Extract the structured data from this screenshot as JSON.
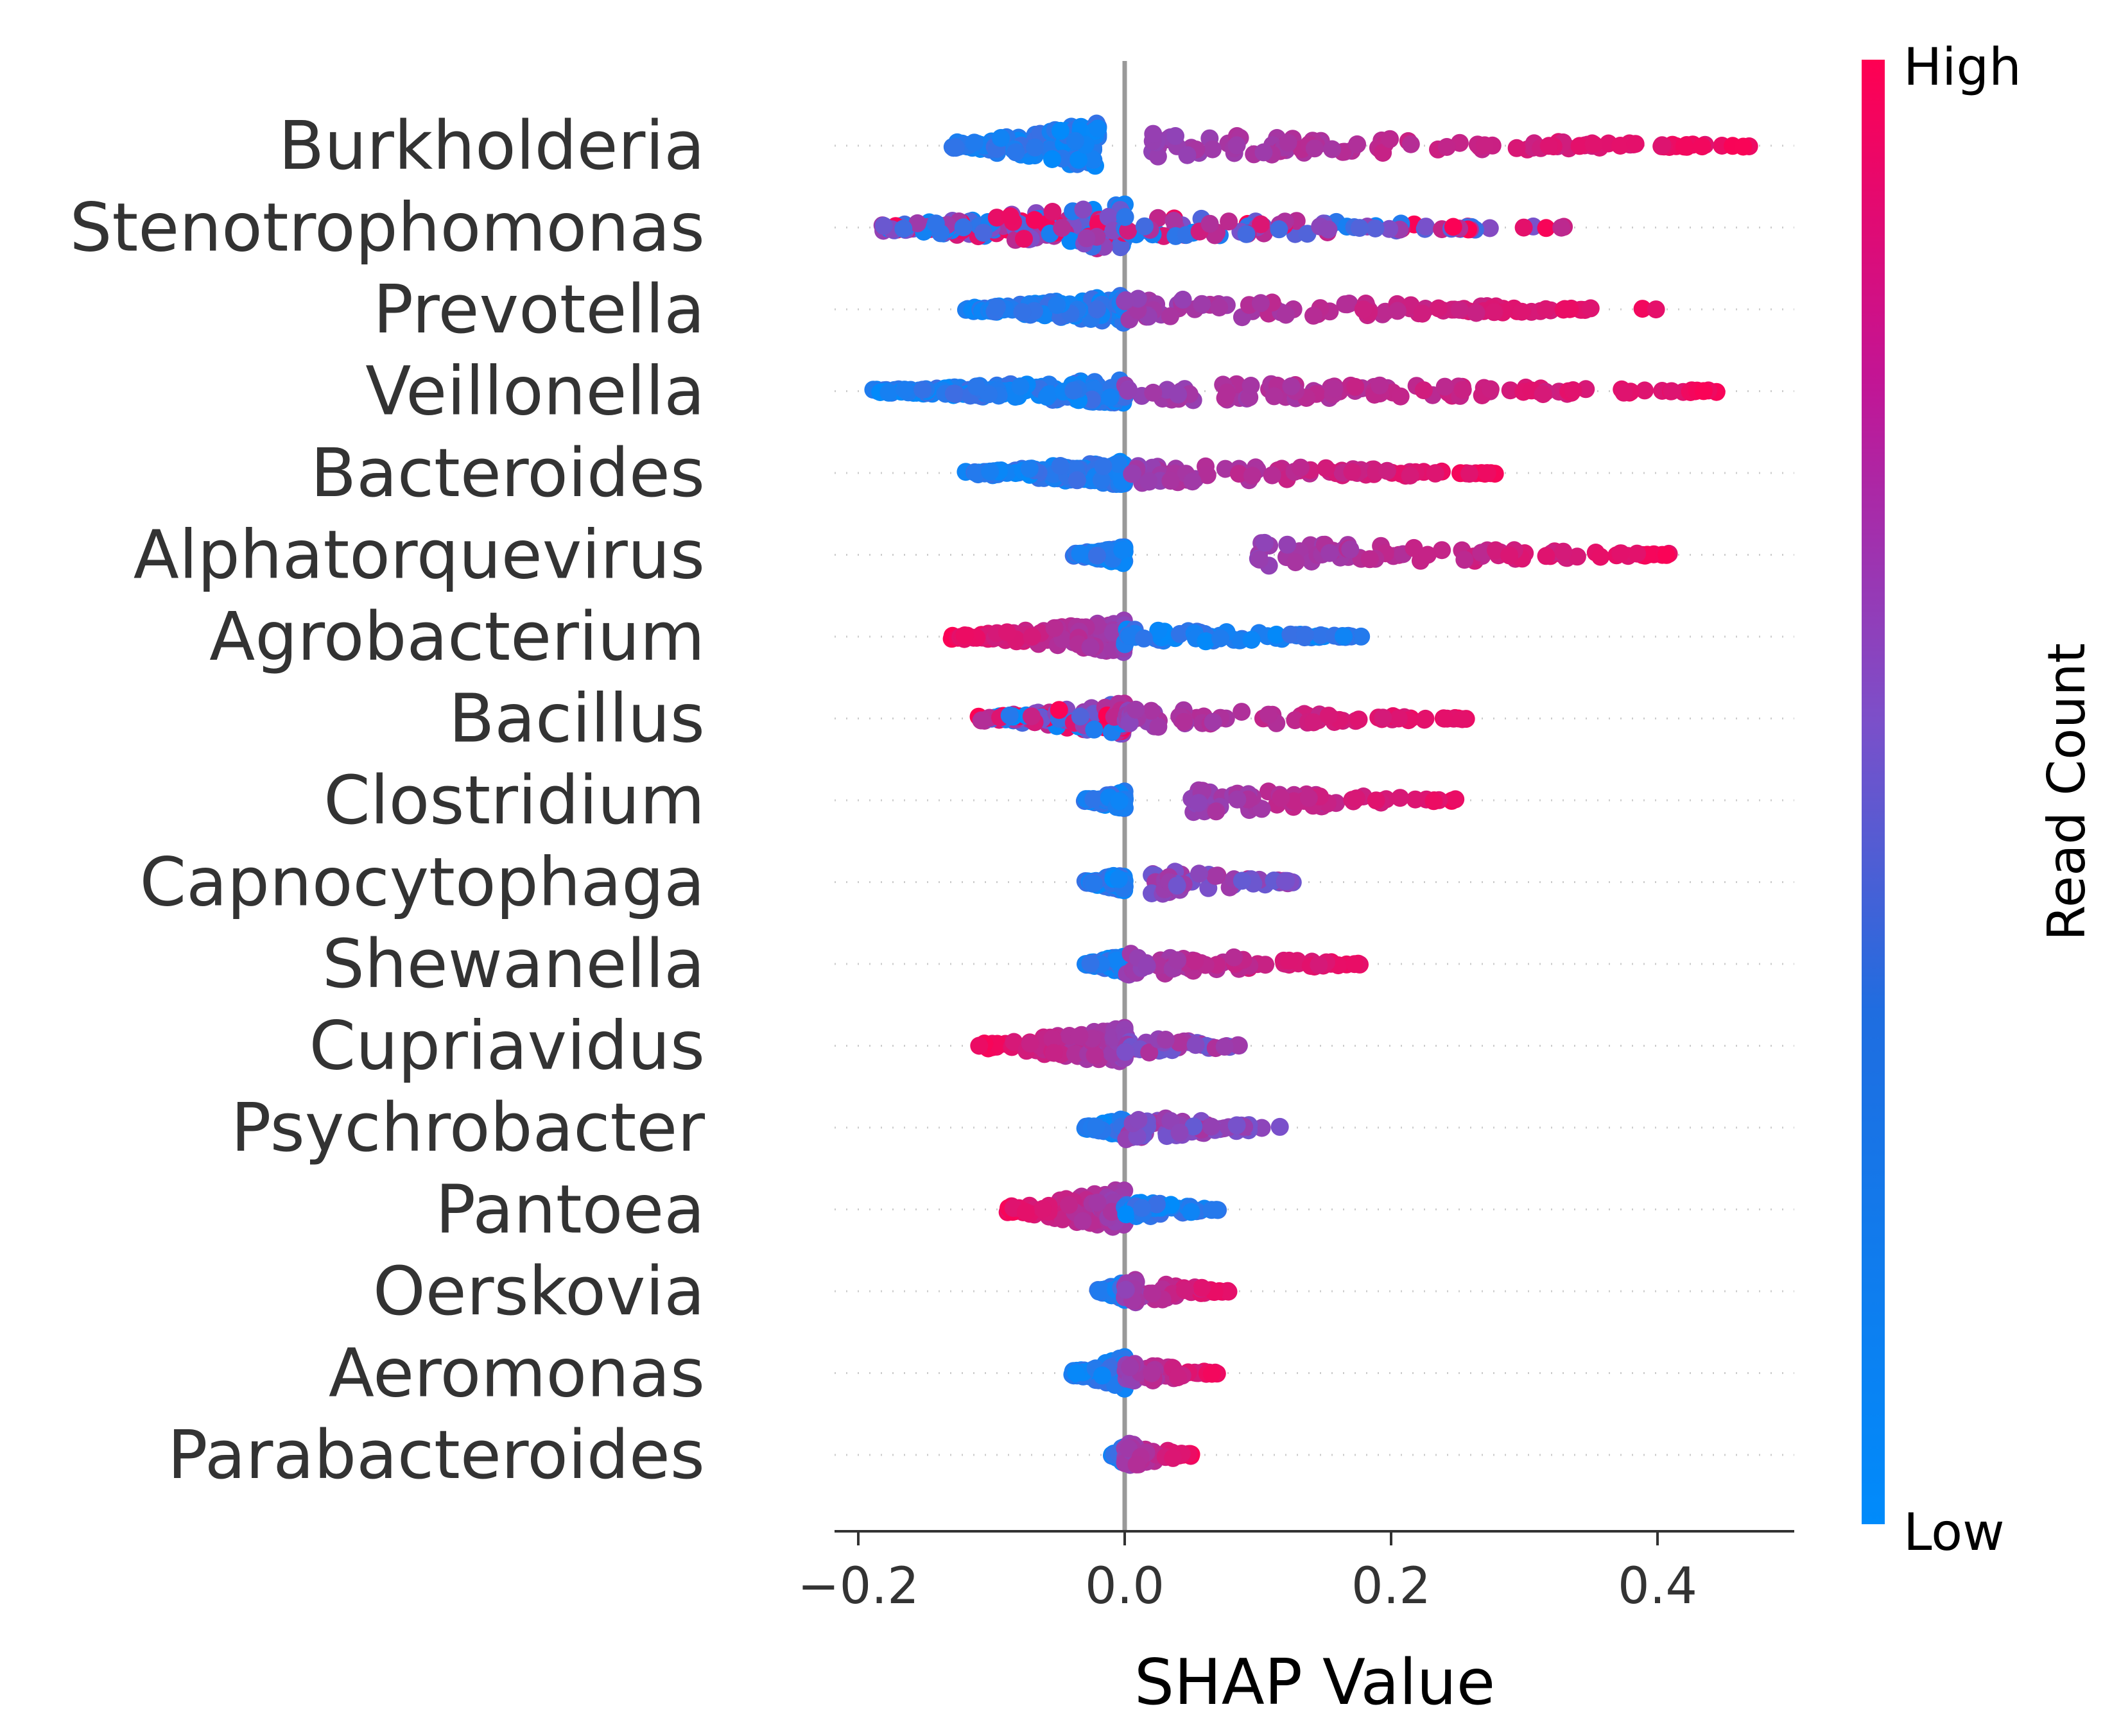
{
  "chart_data": {
    "type": "scatter",
    "subtype": "shap-beeswarm",
    "title": "",
    "xlabel": "SHAP Value",
    "xlim": [
      -0.22,
      0.5
    ],
    "xticks": [
      "−0.2",
      "0.0",
      "0.2",
      "0.4"
    ],
    "xtick_values": [
      -0.2,
      0.0,
      0.2,
      0.4
    ],
    "colorbar": {
      "label": "Read Count",
      "high_label": "High",
      "low_label": "Low",
      "low_color": "#008bfb",
      "mid_color": "#7c4fc9",
      "high_color": "#ff0052"
    },
    "zero_line_color": "#999999",
    "features": [
      {
        "name": "Burkholderia",
        "neg": [
          -0.13,
          -0.02,
          0.6
        ],
        "pos": [
          0.02,
          0.47,
          0.85
        ],
        "neg_color": "low",
        "pos_color": "high"
      },
      {
        "name": "Stenotrophomonas",
        "neg": [
          -0.19,
          0.0,
          0.6
        ],
        "pos": [
          0.0,
          0.33,
          0.7
        ],
        "neg_color": "mixed",
        "pos_color": "mixed"
      },
      {
        "name": "Prevotella",
        "neg": [
          -0.12,
          0.0,
          0.2
        ],
        "pos": [
          0.0,
          0.4,
          0.7
        ],
        "neg_color": "low",
        "pos_color": "high"
      },
      {
        "name": "Veillonella",
        "neg": [
          -0.19,
          0.0,
          0.15
        ],
        "pos": [
          0.0,
          0.45,
          0.7
        ],
        "neg_color": "low",
        "pos_color": "high"
      },
      {
        "name": "Bacteroides",
        "neg": [
          -0.12,
          0.0,
          0.15
        ],
        "pos": [
          0.0,
          0.28,
          0.7
        ],
        "neg_color": "low",
        "pos_color": "high"
      },
      {
        "name": "Alphatorquevirus",
        "neg": [
          -0.04,
          0.0,
          0.0
        ],
        "pos": [
          0.1,
          0.41,
          1.0
        ],
        "neg_color": "low",
        "pos_color": "high"
      },
      {
        "name": "Agrobacterium",
        "neg": [
          -0.13,
          0.0,
          0.3
        ],
        "pos": [
          0.0,
          0.18,
          0.3
        ],
        "neg_color": "high",
        "pos_color": "low"
      },
      {
        "name": "Bacillus",
        "neg": [
          -0.11,
          0.0,
          0.3
        ],
        "pos": [
          0.0,
          0.26,
          0.7
        ],
        "neg_color": "mixed",
        "pos_color": "high"
      },
      {
        "name": "Clostridium",
        "neg": [
          -0.03,
          0.0,
          0.0
        ],
        "pos": [
          0.05,
          0.25,
          1.0
        ],
        "neg_color": "low",
        "pos_color": "high"
      },
      {
        "name": "Capnocytophaga",
        "neg": [
          -0.03,
          0.0,
          0.0
        ],
        "pos": [
          0.02,
          0.13,
          1.0
        ],
        "neg_color": "low",
        "pos_color": "mid"
      },
      {
        "name": "Shewanella",
        "neg": [
          -0.03,
          0.0,
          0.0
        ],
        "pos": [
          0.0,
          0.18,
          1.0
        ],
        "neg_color": "low",
        "pos_color": "high"
      },
      {
        "name": "Cupriavidus",
        "neg": [
          -0.11,
          0.0,
          0.4
        ],
        "pos": [
          0.0,
          0.09,
          0.6
        ],
        "neg_color": "high",
        "pos_color": "mid"
      },
      {
        "name": "Psychrobacter",
        "neg": [
          -0.03,
          0.0,
          0.0
        ],
        "pos": [
          0.0,
          0.12,
          1.0
        ],
        "neg_color": "low",
        "pos_color": "mid"
      },
      {
        "name": "Pantoea",
        "neg": [
          -0.09,
          0.0,
          0.5
        ],
        "pos": [
          0.0,
          0.07,
          0.5
        ],
        "neg_color": "high",
        "pos_color": "low"
      },
      {
        "name": "Oerskovia",
        "neg": [
          -0.02,
          0.0,
          0.0
        ],
        "pos": [
          0.0,
          0.08,
          1.0
        ],
        "neg_color": "low",
        "pos_color": "high"
      },
      {
        "name": "Aeromonas",
        "neg": [
          -0.04,
          0.0,
          0.3
        ],
        "pos": [
          0.0,
          0.07,
          0.7
        ],
        "neg_color": "low",
        "pos_color": "high"
      },
      {
        "name": "Parabacteroides",
        "neg": [
          -0.01,
          0.0,
          0.0
        ],
        "pos": [
          0.0,
          0.05,
          1.0
        ],
        "neg_color": "low",
        "pos_color": "high"
      }
    ]
  }
}
